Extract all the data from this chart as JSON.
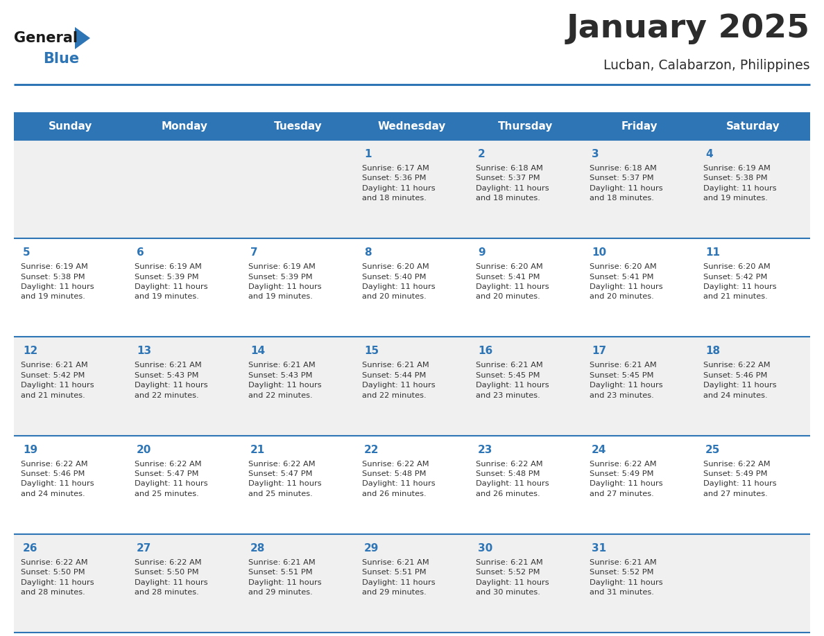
{
  "title": "January 2025",
  "subtitle": "Lucban, Calabarzon, Philippines",
  "title_color": "#2c2c2c",
  "subtitle_color": "#2c2c2c",
  "header_bg_color": "#2e75b6",
  "header_text_color": "#ffffff",
  "row_bg_even": "#f0f0f0",
  "row_bg_odd": "#ffffff",
  "day_number_color": "#2e75b6",
  "cell_text_color": "#333333",
  "border_color": "#2e75b6",
  "days_of_week": [
    "Sunday",
    "Monday",
    "Tuesday",
    "Wednesday",
    "Thursday",
    "Friday",
    "Saturday"
  ],
  "weeks": [
    [
      {
        "day": 0,
        "info": ""
      },
      {
        "day": 0,
        "info": ""
      },
      {
        "day": 0,
        "info": ""
      },
      {
        "day": 1,
        "info": "Sunrise: 6:17 AM\nSunset: 5:36 PM\nDaylight: 11 hours\nand 18 minutes."
      },
      {
        "day": 2,
        "info": "Sunrise: 6:18 AM\nSunset: 5:37 PM\nDaylight: 11 hours\nand 18 minutes."
      },
      {
        "day": 3,
        "info": "Sunrise: 6:18 AM\nSunset: 5:37 PM\nDaylight: 11 hours\nand 18 minutes."
      },
      {
        "day": 4,
        "info": "Sunrise: 6:19 AM\nSunset: 5:38 PM\nDaylight: 11 hours\nand 19 minutes."
      }
    ],
    [
      {
        "day": 5,
        "info": "Sunrise: 6:19 AM\nSunset: 5:38 PM\nDaylight: 11 hours\nand 19 minutes."
      },
      {
        "day": 6,
        "info": "Sunrise: 6:19 AM\nSunset: 5:39 PM\nDaylight: 11 hours\nand 19 minutes."
      },
      {
        "day": 7,
        "info": "Sunrise: 6:19 AM\nSunset: 5:39 PM\nDaylight: 11 hours\nand 19 minutes."
      },
      {
        "day": 8,
        "info": "Sunrise: 6:20 AM\nSunset: 5:40 PM\nDaylight: 11 hours\nand 20 minutes."
      },
      {
        "day": 9,
        "info": "Sunrise: 6:20 AM\nSunset: 5:41 PM\nDaylight: 11 hours\nand 20 minutes."
      },
      {
        "day": 10,
        "info": "Sunrise: 6:20 AM\nSunset: 5:41 PM\nDaylight: 11 hours\nand 20 minutes."
      },
      {
        "day": 11,
        "info": "Sunrise: 6:20 AM\nSunset: 5:42 PM\nDaylight: 11 hours\nand 21 minutes."
      }
    ],
    [
      {
        "day": 12,
        "info": "Sunrise: 6:21 AM\nSunset: 5:42 PM\nDaylight: 11 hours\nand 21 minutes."
      },
      {
        "day": 13,
        "info": "Sunrise: 6:21 AM\nSunset: 5:43 PM\nDaylight: 11 hours\nand 22 minutes."
      },
      {
        "day": 14,
        "info": "Sunrise: 6:21 AM\nSunset: 5:43 PM\nDaylight: 11 hours\nand 22 minutes."
      },
      {
        "day": 15,
        "info": "Sunrise: 6:21 AM\nSunset: 5:44 PM\nDaylight: 11 hours\nand 22 minutes."
      },
      {
        "day": 16,
        "info": "Sunrise: 6:21 AM\nSunset: 5:45 PM\nDaylight: 11 hours\nand 23 minutes."
      },
      {
        "day": 17,
        "info": "Sunrise: 6:21 AM\nSunset: 5:45 PM\nDaylight: 11 hours\nand 23 minutes."
      },
      {
        "day": 18,
        "info": "Sunrise: 6:22 AM\nSunset: 5:46 PM\nDaylight: 11 hours\nand 24 minutes."
      }
    ],
    [
      {
        "day": 19,
        "info": "Sunrise: 6:22 AM\nSunset: 5:46 PM\nDaylight: 11 hours\nand 24 minutes."
      },
      {
        "day": 20,
        "info": "Sunrise: 6:22 AM\nSunset: 5:47 PM\nDaylight: 11 hours\nand 25 minutes."
      },
      {
        "day": 21,
        "info": "Sunrise: 6:22 AM\nSunset: 5:47 PM\nDaylight: 11 hours\nand 25 minutes."
      },
      {
        "day": 22,
        "info": "Sunrise: 6:22 AM\nSunset: 5:48 PM\nDaylight: 11 hours\nand 26 minutes."
      },
      {
        "day": 23,
        "info": "Sunrise: 6:22 AM\nSunset: 5:48 PM\nDaylight: 11 hours\nand 26 minutes."
      },
      {
        "day": 24,
        "info": "Sunrise: 6:22 AM\nSunset: 5:49 PM\nDaylight: 11 hours\nand 27 minutes."
      },
      {
        "day": 25,
        "info": "Sunrise: 6:22 AM\nSunset: 5:49 PM\nDaylight: 11 hours\nand 27 minutes."
      }
    ],
    [
      {
        "day": 26,
        "info": "Sunrise: 6:22 AM\nSunset: 5:50 PM\nDaylight: 11 hours\nand 28 minutes."
      },
      {
        "day": 27,
        "info": "Sunrise: 6:22 AM\nSunset: 5:50 PM\nDaylight: 11 hours\nand 28 minutes."
      },
      {
        "day": 28,
        "info": "Sunrise: 6:21 AM\nSunset: 5:51 PM\nDaylight: 11 hours\nand 29 minutes."
      },
      {
        "day": 29,
        "info": "Sunrise: 6:21 AM\nSunset: 5:51 PM\nDaylight: 11 hours\nand 29 minutes."
      },
      {
        "day": 30,
        "info": "Sunrise: 6:21 AM\nSunset: 5:52 PM\nDaylight: 11 hours\nand 30 minutes."
      },
      {
        "day": 31,
        "info": "Sunrise: 6:21 AM\nSunset: 5:52 PM\nDaylight: 11 hours\nand 31 minutes."
      },
      {
        "day": 0,
        "info": ""
      }
    ]
  ],
  "logo_general_color": "#1a1a1a",
  "logo_blue_color": "#2e75b6",
  "logo_triangle_color": "#2e75b6",
  "fig_width": 11.88,
  "fig_height": 9.18,
  "dpi": 100
}
